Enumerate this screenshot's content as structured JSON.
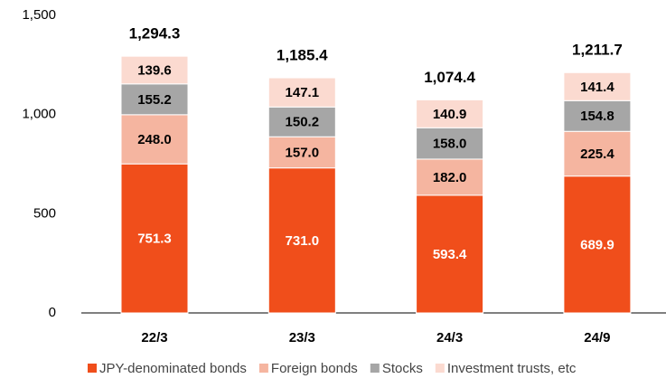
{
  "chart_data": {
    "type": "stacked_bar",
    "categories": [
      "22/3",
      "23/3",
      "24/3",
      "24/9"
    ],
    "series": [
      {
        "name": "JPY-denominated bonds",
        "color": "#f04e1b",
        "values": [
          751.3,
          731.0,
          593.4,
          689.9
        ],
        "value_labels": [
          "751.3",
          "731.0",
          "593.4",
          "689.9"
        ]
      },
      {
        "name": "Foreign bonds",
        "color": "#f5b5a0",
        "values": [
          248.0,
          157.0,
          182.0,
          225.4
        ],
        "value_labels": [
          "248.0",
          "157.0",
          "182.0",
          "225.4"
        ]
      },
      {
        "name": "Stocks",
        "color": "#a6a6a6",
        "values": [
          155.2,
          150.2,
          158.0,
          154.8
        ],
        "value_labels": [
          "155.2",
          "150.2",
          "158.0",
          "154.8"
        ]
      },
      {
        "name": "Investment trusts, etc",
        "color": "#fbdad0",
        "values": [
          139.6,
          147.1,
          140.9,
          141.4
        ],
        "value_labels": [
          "139.6",
          "147.1",
          "140.9",
          "141.4"
        ]
      }
    ],
    "totals": [
      1294.3,
      1185.4,
      1074.4,
      1211.7
    ],
    "total_labels": [
      "1,294.3",
      "1,185.4",
      "1,074.4",
      "1,211.7"
    ],
    "ylim": [
      0,
      1500
    ],
    "yticks": [
      0,
      500,
      {
        "value": 1000,
        "label": "1,000"
      },
      {
        "value": 1500,
        "label": "1,500"
      }
    ],
    "legend": "bottom"
  }
}
